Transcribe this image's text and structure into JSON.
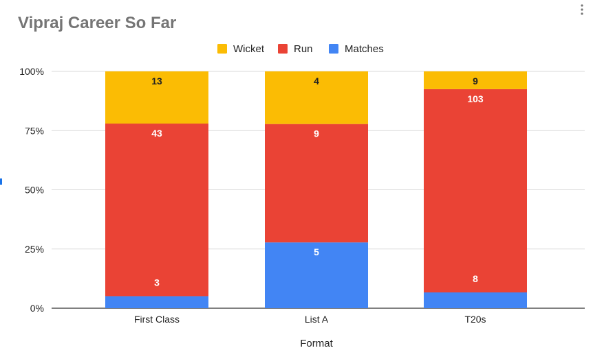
{
  "chart_data": {
    "type": "bar",
    "stacked": true,
    "normalized": true,
    "title": "Vipraj Career So Far",
    "xlabel": "Format",
    "ylabel": "",
    "categories": [
      "First Class",
      "List A",
      "T20s"
    ],
    "series": [
      {
        "name": "Matches",
        "values": [
          3,
          5,
          8
        ],
        "color": "#4285f4"
      },
      {
        "name": "Run",
        "values": [
          43,
          9,
          103
        ],
        "color": "#ea4335"
      },
      {
        "name": "Wicket",
        "values": [
          13,
          4,
          9
        ],
        "color": "#fbbc04"
      }
    ],
    "legend_order": [
      "Wicket",
      "Run",
      "Matches"
    ],
    "legend_position": "top",
    "yticks": [
      "0%",
      "25%",
      "50%",
      "75%",
      "100%"
    ],
    "ylim": [
      0,
      100
    ],
    "grid": true,
    "label_colors": {
      "Wicket": "#222222",
      "Run": "#ffffff",
      "Matches": "#ffffff"
    }
  },
  "menu": {
    "icon": "vertical-dots-menu-icon"
  }
}
